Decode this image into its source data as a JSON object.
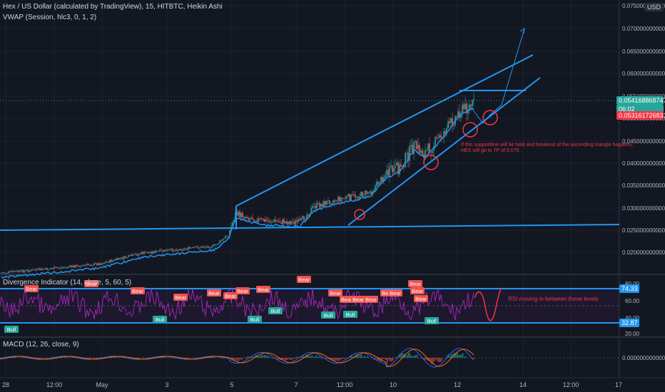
{
  "header": {
    "title": "Hex / US Dollar (calculated by TradingView), 15, HITBTC, Heikin Ashi",
    "vwap": "VWAP (Session, hlc3, 0, 1, 2)"
  },
  "price_axis": {
    "currency_button": "USD",
    "ticks": [
      "0.075000000000",
      "0.070000000000",
      "0.065000000000",
      "0.060000000000",
      "0.055000000000",
      "0.050000000000",
      "0.045000000000",
      "0.040000000000",
      "0.035000000000",
      "0.030000000000",
      "0.025000000000",
      "0.020000000000"
    ],
    "current_price": "0.054168868747",
    "countdown": "06:02",
    "vwap_price": "0.053161726831"
  },
  "annotations": {
    "triangle_note_line1": "If this supportline will be held and breakout of the ascending triangle happens,",
    "triangle_note_line2": "HEX will go to TP of 0.070.",
    "rsi_note": "RSI moving in between these levels"
  },
  "divergence": {
    "legend": "Divergence Indicator (14, close, 5, 60, 5)",
    "ticks": [
      "80.00",
      "60.00",
      "40.00",
      "20.00"
    ],
    "upper_level": "74.33",
    "lower_level": "32.87",
    "labels": [
      {
        "kind": "bear",
        "text": "Bear"
      },
      {
        "kind": "bear",
        "text": "Bear"
      },
      {
        "kind": "bear",
        "text": "Bear"
      },
      {
        "kind": "bear",
        "text": "Bear"
      },
      {
        "kind": "bear",
        "text": "Bear"
      },
      {
        "kind": "bear",
        "text": "Bear"
      },
      {
        "kind": "bear",
        "text": "Bear"
      },
      {
        "kind": "bear",
        "text": "Bear"
      },
      {
        "kind": "bear",
        "text": "Bear"
      },
      {
        "kind": "bear",
        "text": "Bear"
      },
      {
        "kind": "bear",
        "text": "Bear"
      },
      {
        "kind": "bear",
        "text": "Bear"
      },
      {
        "kind": "bear",
        "text": "Bear"
      },
      {
        "kind": "bear",
        "text": "Bear"
      },
      {
        "kind": "bear",
        "text": "Bear"
      },
      {
        "kind": "bear",
        "text": "Bear"
      },
      {
        "kind": "bear",
        "text": "Bear"
      },
      {
        "kind": "bear",
        "text": "Bear"
      },
      {
        "kind": "bull",
        "text": "Bull"
      },
      {
        "kind": "bull",
        "text": "Bull"
      },
      {
        "kind": "bull",
        "text": "Bull"
      },
      {
        "kind": "bull",
        "text": "Bull"
      },
      {
        "kind": "bull",
        "text": "Bull"
      },
      {
        "kind": "bull",
        "text": "Bull"
      },
      {
        "kind": "bull",
        "text": "Bull"
      }
    ]
  },
  "macd": {
    "legend": "MACD (12, 26, close, 9)",
    "zero_tick": "0.000000000000"
  },
  "time_axis": [
    "28",
    "12:00",
    "May",
    "3",
    "5",
    "7",
    "12:00",
    "10",
    "12",
    "14",
    "12:00",
    "17"
  ],
  "colors": {
    "background": "#131722",
    "trendline": "#2196f3",
    "annotation": "#f23645",
    "candle_up": "#26a69a",
    "candle_down": "#ef5350",
    "rsi_line": "#9c27b0",
    "macd_line": "#2962ff",
    "signal_line": "#ff6d00"
  }
}
